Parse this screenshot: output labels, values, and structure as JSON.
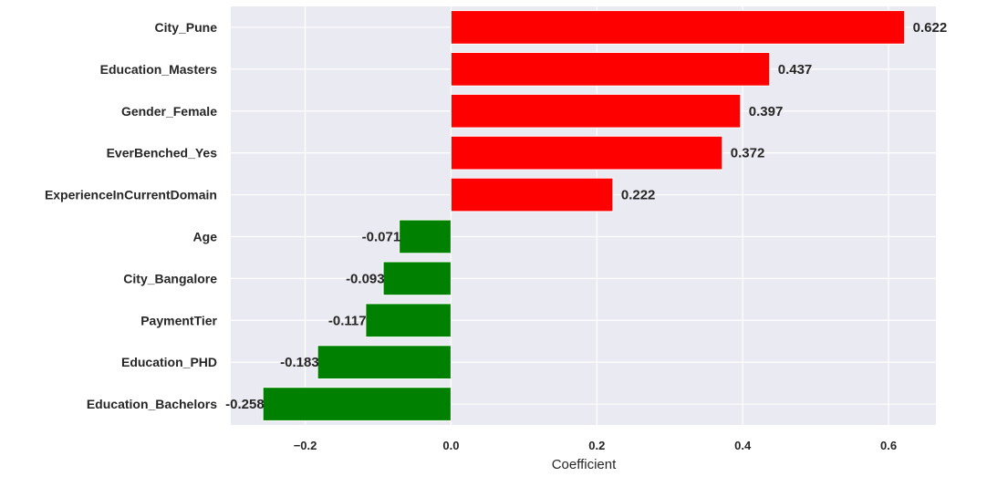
{
  "chart_data": {
    "type": "bar",
    "orientation": "horizontal",
    "categories": [
      "City_Pune",
      "Education_Masters",
      "Gender_Female",
      "EverBenched_Yes",
      "ExperienceInCurrentDomain",
      "Age",
      "City_Bangalore",
      "PaymentTier",
      "Education_PHD",
      "Education_Bachelors"
    ],
    "values": [
      0.622,
      0.437,
      0.397,
      0.372,
      0.222,
      -0.071,
      -0.093,
      -0.117,
      -0.183,
      -0.258
    ],
    "value_labels": [
      "0.622",
      "0.437",
      "0.397",
      "0.372",
      "0.222",
      "-0.071",
      "-0.093",
      "-0.117",
      "-0.183",
      "-0.258"
    ],
    "title": "",
    "xlabel": "Coefficient",
    "ylabel": "",
    "xlim": [
      -0.302,
      0.665
    ],
    "xticks": [
      -0.2,
      0.0,
      0.2,
      0.4,
      0.6
    ],
    "xtick_labels": [
      "−0.2",
      "0.0",
      "0.2",
      "0.4",
      "0.6"
    ],
    "grid": true,
    "colors": {
      "positive": "#ff0000",
      "negative": "#008000",
      "plot_background": "#eaeaf2",
      "gridline": "#ffffff",
      "text": "#262626"
    }
  }
}
